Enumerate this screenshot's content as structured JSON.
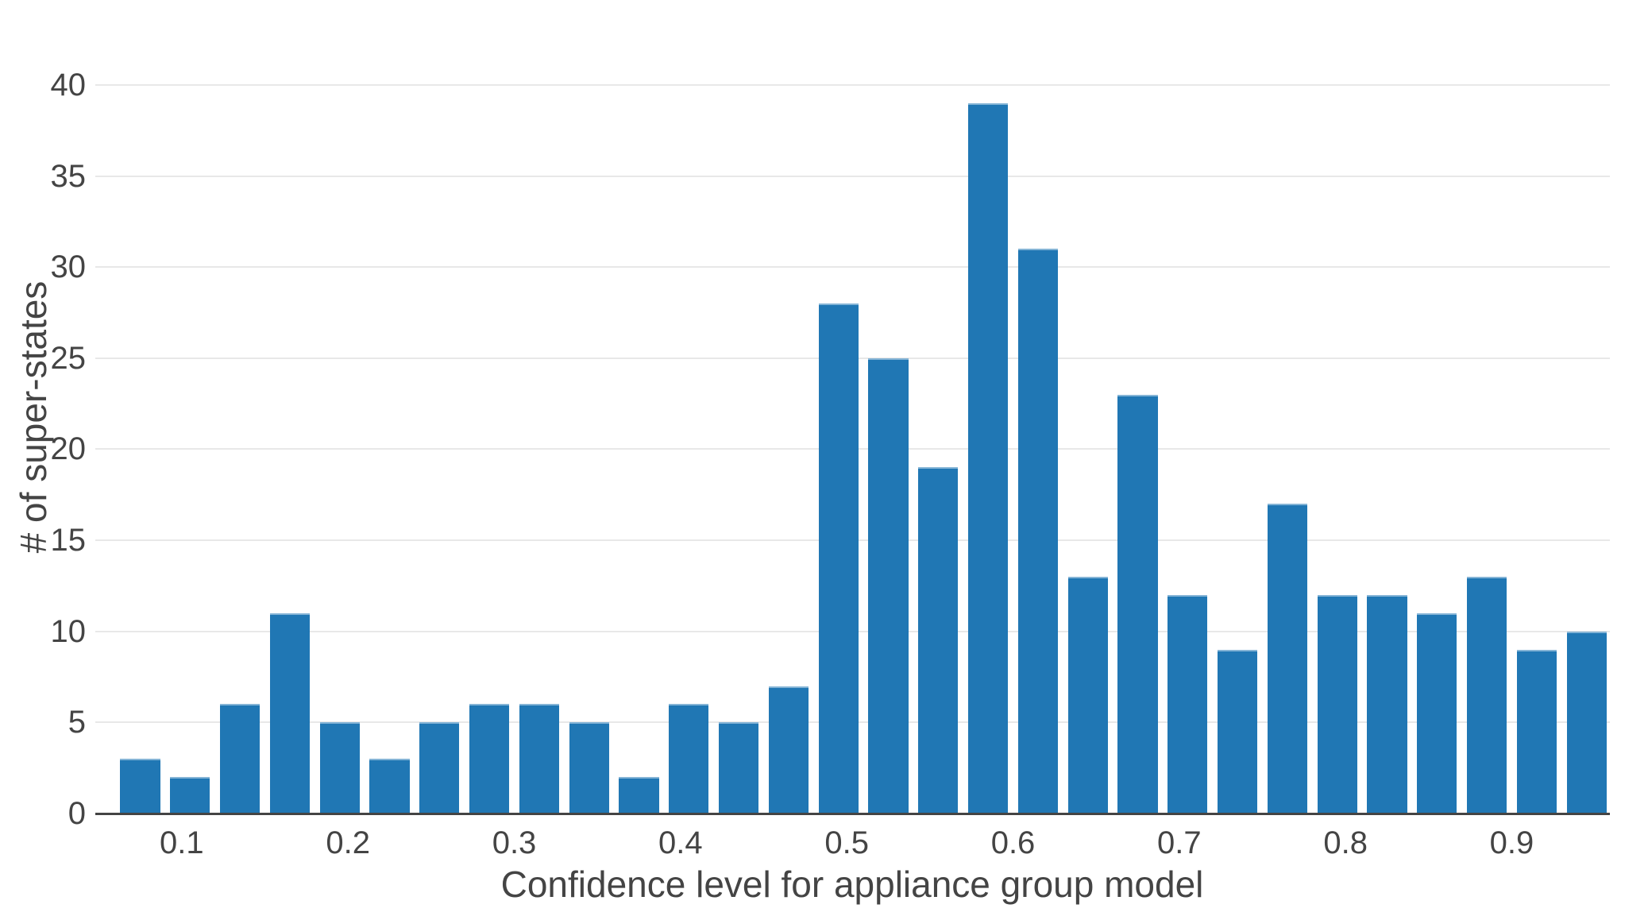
{
  "chart_data": {
    "type": "bar",
    "subtype": "histogram",
    "title": "",
    "xlabel": "Confidence level for appliance group model",
    "ylabel": "# of super-states",
    "bin_start": 0.06,
    "bin_width": 0.03,
    "bar_fill_ratio": 0.8,
    "categories": [
      0.075,
      0.105,
      0.135,
      0.165,
      0.195,
      0.225,
      0.255,
      0.285,
      0.315,
      0.345,
      0.375,
      0.405,
      0.435,
      0.465,
      0.495,
      0.525,
      0.555,
      0.585,
      0.615,
      0.645,
      0.675,
      0.705,
      0.735,
      0.765,
      0.795,
      0.825,
      0.855,
      0.885,
      0.915,
      0.945
    ],
    "values": [
      3,
      2,
      6,
      11,
      5,
      3,
      5,
      6,
      6,
      5,
      2,
      6,
      5,
      7,
      28,
      25,
      19,
      39,
      31,
      13,
      23,
      12,
      9,
      17,
      12,
      12,
      11,
      13,
      9,
      10
    ],
    "x_ticks": [
      0.1,
      0.2,
      0.3,
      0.4,
      0.5,
      0.6,
      0.7,
      0.8,
      0.9
    ],
    "x_tick_labels": [
      "0.1",
      "0.2",
      "0.3",
      "0.4",
      "0.5",
      "0.6",
      "0.7",
      "0.8",
      "0.9"
    ],
    "y_ticks": [
      0,
      5,
      10,
      15,
      20,
      25,
      30,
      35,
      40
    ],
    "y_tick_labels": [
      "0",
      "5",
      "10",
      "15",
      "20",
      "25",
      "30",
      "35",
      "40"
    ],
    "xlim": [
      0.048,
      0.959
    ],
    "ylim": [
      0,
      42.7
    ],
    "grid": "horizontal",
    "legend": "none",
    "colors": {
      "bar": "#2077b4",
      "gridline": "#e8e8e8",
      "axis_line": "#444444",
      "text": "#444444",
      "background": "#ffffff"
    }
  }
}
